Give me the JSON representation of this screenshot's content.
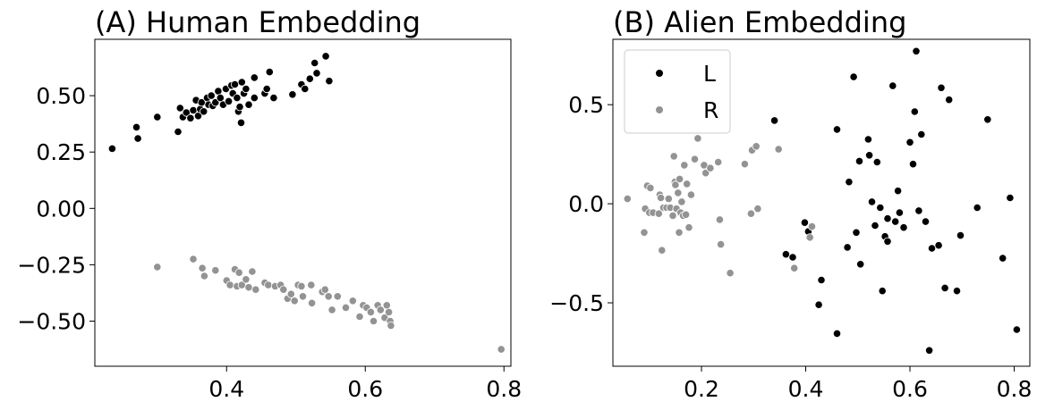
{
  "colors": {
    "L": "#000000",
    "R": "#939393"
  },
  "chart_data": [
    {
      "type": "scatter",
      "title": "(A) Human Embedding",
      "xlim": [
        0.21,
        0.81
      ],
      "ylim": [
        -0.7,
        0.75
      ],
      "xticks": [
        0.4,
        0.6,
        0.8
      ],
      "xtick_labels": [
        "0.4",
        "0.6",
        "0.8"
      ],
      "yticks": [
        -0.5,
        -0.25,
        0.0,
        0.25,
        0.5
      ],
      "ytick_labels": [
        "−0.50",
        "−0.25",
        "0.00",
        "0.25",
        "0.50"
      ],
      "series": [
        {
          "name": "L",
          "points": [
            [
              0.235,
              0.265
            ],
            [
              0.27,
              0.36
            ],
            [
              0.272,
              0.31
            ],
            [
              0.3,
              0.405
            ],
            [
              0.33,
              0.34
            ],
            [
              0.333,
              0.445
            ],
            [
              0.337,
              0.405
            ],
            [
              0.342,
              0.425
            ],
            [
              0.348,
              0.4
            ],
            [
              0.352,
              0.435
            ],
            [
              0.356,
              0.48
            ],
            [
              0.359,
              0.41
            ],
            [
              0.362,
              0.44
            ],
            [
              0.364,
              0.47
            ],
            [
              0.367,
              0.43
            ],
            [
              0.372,
              0.49
            ],
            [
              0.374,
              0.46
            ],
            [
              0.378,
              0.5
            ],
            [
              0.38,
              0.455
            ],
            [
              0.384,
              0.47
            ],
            [
              0.388,
              0.52
            ],
            [
              0.391,
              0.49
            ],
            [
              0.395,
              0.46
            ],
            [
              0.399,
              0.53
            ],
            [
              0.403,
              0.475
            ],
            [
              0.407,
              0.545
            ],
            [
              0.409,
              0.51
            ],
            [
              0.412,
              0.55
            ],
            [
              0.415,
              0.49
            ],
            [
              0.417,
              0.43
            ],
            [
              0.419,
              0.45
            ],
            [
              0.421,
              0.38
            ],
            [
              0.422,
              0.56
            ],
            [
              0.425,
              0.51
            ],
            [
              0.428,
              0.53
            ],
            [
              0.432,
              0.46
            ],
            [
              0.44,
              0.58
            ],
            [
              0.44,
              0.49
            ],
            [
              0.455,
              0.51
            ],
            [
              0.458,
              0.53
            ],
            [
              0.462,
              0.605
            ],
            [
              0.468,
              0.49
            ],
            [
              0.495,
              0.505
            ],
            [
              0.508,
              0.55
            ],
            [
              0.513,
              0.53
            ],
            [
              0.52,
              0.575
            ],
            [
              0.527,
              0.645
            ],
            [
              0.53,
              0.6
            ],
            [
              0.543,
              0.675
            ],
            [
              0.548,
              0.565
            ]
          ]
        },
        {
          "name": "R",
          "points": [
            [
              0.3,
              -0.26
            ],
            [
              0.352,
              -0.225
            ],
            [
              0.365,
              -0.265
            ],
            [
              0.368,
              -0.3
            ],
            [
              0.384,
              -0.275
            ],
            [
              0.4,
              -0.32
            ],
            [
              0.405,
              -0.34
            ],
            [
              0.412,
              -0.27
            ],
            [
              0.415,
              -0.345
            ],
            [
              0.418,
              -0.285
            ],
            [
              0.422,
              -0.34
            ],
            [
              0.428,
              -0.315
            ],
            [
              0.432,
              -0.35
            ],
            [
              0.437,
              -0.28
            ],
            [
              0.442,
              -0.36
            ],
            [
              0.455,
              -0.33
            ],
            [
              0.46,
              -0.34
            ],
            [
              0.47,
              -0.345
            ],
            [
              0.478,
              -0.34
            ],
            [
              0.482,
              -0.36
            ],
            [
              0.488,
              -0.4
            ],
            [
              0.493,
              -0.38
            ],
            [
              0.498,
              -0.41
            ],
            [
              0.503,
              -0.34
            ],
            [
              0.508,
              -0.345
            ],
            [
              0.51,
              -0.39
            ],
            [
              0.522,
              -0.34
            ],
            [
              0.523,
              -0.42
            ],
            [
              0.538,
              -0.37
            ],
            [
              0.542,
              -0.36
            ],
            [
              0.547,
              -0.39
            ],
            [
              0.552,
              -0.45
            ],
            [
              0.56,
              -0.39
            ],
            [
              0.572,
              -0.44
            ],
            [
              0.582,
              -0.41
            ],
            [
              0.592,
              -0.48
            ],
            [
              0.597,
              -0.43
            ],
            [
              0.602,
              -0.44
            ],
            [
              0.608,
              -0.46
            ],
            [
              0.612,
              -0.5
            ],
            [
              0.618,
              -0.43
            ],
            [
              0.622,
              -0.45
            ],
            [
              0.628,
              -0.485
            ],
            [
              0.631,
              -0.43
            ],
            [
              0.634,
              -0.46
            ],
            [
              0.636,
              -0.5
            ],
            [
              0.637,
              -0.52
            ],
            [
              0.796,
              -0.625
            ]
          ]
        }
      ]
    },
    {
      "type": "scatter",
      "title": "(B) Alien Embedding",
      "xlim": [
        0.03,
        0.83
      ],
      "ylim": [
        -0.82,
        0.83
      ],
      "xticks": [
        0.2,
        0.4,
        0.6,
        0.8
      ],
      "xtick_labels": [
        "0.2",
        "0.4",
        "0.6",
        "0.8"
      ],
      "yticks": [
        -0.5,
        0.0,
        0.5
      ],
      "ytick_labels": [
        "−0.5",
        "0.0",
        "0.5"
      ],
      "legend": {
        "position": "top-left",
        "entries": [
          "L",
          "R"
        ]
      },
      "series": [
        {
          "name": "L",
          "points": [
            [
              0.34,
              0.42
            ],
            [
              0.362,
              -0.255
            ],
            [
              0.375,
              -0.27
            ],
            [
              0.398,
              -0.095
            ],
            [
              0.405,
              -0.14
            ],
            [
              0.425,
              -0.51
            ],
            [
              0.43,
              -0.385
            ],
            [
              0.46,
              0.375
            ],
            [
              0.46,
              -0.655
            ],
            [
              0.48,
              -0.22
            ],
            [
              0.483,
              0.11
            ],
            [
              0.492,
              0.64
            ],
            [
              0.497,
              -0.145
            ],
            [
              0.503,
              0.215
            ],
            [
              0.505,
              -0.305
            ],
            [
              0.52,
              0.325
            ],
            [
              0.522,
              0.245
            ],
            [
              0.527,
              0.01
            ],
            [
              0.533,
              -0.11
            ],
            [
              0.537,
              0.21
            ],
            [
              0.543,
              -0.02
            ],
            [
              0.547,
              -0.44
            ],
            [
              0.552,
              -0.165
            ],
            [
              0.557,
              -0.075
            ],
            [
              0.557,
              -0.19
            ],
            [
              0.567,
              0.595
            ],
            [
              0.572,
              -0.09
            ],
            [
              0.577,
              0.065
            ],
            [
              0.58,
              -0.045
            ],
            [
              0.588,
              -0.12
            ],
            [
              0.6,
              0.31
            ],
            [
              0.606,
              0.2
            ],
            [
              0.609,
              0.465
            ],
            [
              0.612,
              0.77
            ],
            [
              0.617,
              -0.035
            ],
            [
              0.622,
              0.35
            ],
            [
              0.63,
              -0.09
            ],
            [
              0.637,
              -0.74
            ],
            [
              0.642,
              -0.225
            ],
            [
              0.655,
              -0.21
            ],
            [
              0.66,
              0.585
            ],
            [
              0.667,
              -0.425
            ],
            [
              0.675,
              0.525
            ],
            [
              0.69,
              -0.44
            ],
            [
              0.697,
              -0.16
            ],
            [
              0.729,
              -0.02
            ],
            [
              0.749,
              0.425
            ],
            [
              0.778,
              -0.275
            ],
            [
              0.792,
              0.03
            ],
            [
              0.805,
              -0.635
            ]
          ]
        },
        {
          "name": "R",
          "points": [
            [
              0.058,
              0.025
            ],
            [
              0.09,
              -0.145
            ],
            [
              0.092,
              -0.025
            ],
            [
              0.096,
              0.09
            ],
            [
              0.1,
              -0.045
            ],
            [
              0.102,
              0.08
            ],
            [
              0.107,
              -0.045
            ],
            [
              0.118,
              -0.05
            ],
            [
              0.12,
              0.045
            ],
            [
              0.122,
              0.03
            ],
            [
              0.124,
              -0.235
            ],
            [
              0.127,
              -0.02
            ],
            [
              0.133,
              -0.02
            ],
            [
              0.137,
              0.025
            ],
            [
              0.14,
              -0.02
            ],
            [
              0.145,
              -0.06
            ],
            [
              0.147,
              0.24
            ],
            [
              0.149,
              0.11
            ],
            [
              0.15,
              0.095
            ],
            [
              0.152,
              -0.025
            ],
            [
              0.155,
              0.055
            ],
            [
              0.157,
              -0.145
            ],
            [
              0.158,
              0.125
            ],
            [
              0.16,
              -0.045
            ],
            [
              0.162,
              0.01
            ],
            [
              0.165,
              -0.06
            ],
            [
              0.167,
              0.195
            ],
            [
              0.17,
              -0.055
            ],
            [
              0.172,
              0.1
            ],
            [
              0.176,
              -0.12
            ],
            [
              0.18,
              0.045
            ],
            [
              0.187,
              0.225
            ],
            [
              0.193,
              0.33
            ],
            [
              0.205,
              0.195
            ],
            [
              0.208,
              0.155
            ],
            [
              0.217,
              0.18
            ],
            [
              0.232,
              0.21
            ],
            [
              0.235,
              -0.08
            ],
            [
              0.237,
              -0.205
            ],
            [
              0.255,
              -0.35
            ],
            [
              0.283,
              0.2
            ],
            [
              0.295,
              -0.05
            ],
            [
              0.297,
              0.27
            ],
            [
              0.305,
              0.29
            ],
            [
              0.308,
              -0.025
            ],
            [
              0.348,
              0.275
            ],
            [
              0.378,
              -0.325
            ],
            [
              0.408,
              -0.17
            ],
            [
              0.412,
              -0.115
            ]
          ]
        }
      ]
    }
  ]
}
